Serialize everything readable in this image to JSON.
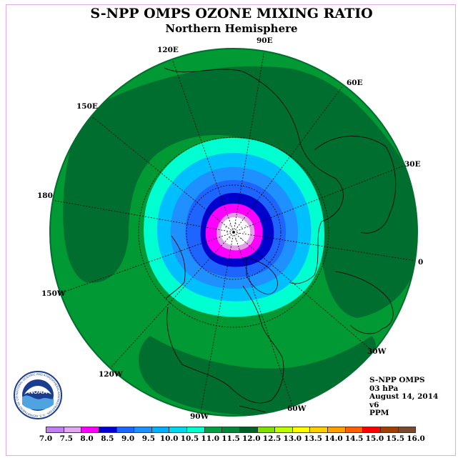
{
  "header": {
    "title": "S-NPP OMPS OZONE MIXING RATIO",
    "subtitle": "Northern Hemisphere"
  },
  "map": {
    "projection": "north-polar-stereographic",
    "longitude_labels": [
      {
        "id": "lon-90e",
        "text": "90E"
      },
      {
        "id": "lon-120e",
        "text": "120E"
      },
      {
        "id": "lon-60e",
        "text": "60E"
      },
      {
        "id": "lon-150e",
        "text": "150E"
      },
      {
        "id": "lon-30e",
        "text": "30E"
      },
      {
        "id": "lon-180",
        "text": "180"
      },
      {
        "id": "lon-0",
        "text": "0"
      },
      {
        "id": "lon-150w",
        "text": "150W"
      },
      {
        "id": "lon-30w",
        "text": "30W"
      },
      {
        "id": "lon-120w",
        "text": "120W"
      },
      {
        "id": "lon-60w",
        "text": "60W"
      },
      {
        "id": "lon-90w",
        "text": "90W"
      }
    ],
    "field_colors": {
      "max_center": "#ffffff",
      "ring_8": "#e0a0e8",
      "ring_8_5": "#ff00ff",
      "ring_9": "#0000cd",
      "ring_9_5": "#1e64ff",
      "ring_10": "#1e90ff",
      "ring_10_5": "#00bfff",
      "ring_11": "#00ffd0",
      "ring_11_5": "#009933",
      "ring_12": "#006e2e"
    }
  },
  "info": {
    "instrument": "S-NPP OMPS",
    "level": "03 hPa",
    "date": "August 14, 2014",
    "version": "v6",
    "units": "PPM"
  },
  "colorbar": {
    "colors": [
      "#c080f0",
      "#e0a8f0",
      "#ff00ff",
      "#0000d0",
      "#1e64ff",
      "#1e90ff",
      "#00b0ff",
      "#00d8f0",
      "#00ffcc",
      "#00a040",
      "#008838",
      "#006028",
      "#80e000",
      "#c0ff00",
      "#ffff00",
      "#ffd000",
      "#ffa000",
      "#ff6000",
      "#ff0000",
      "#a04000",
      "#7a4a30"
    ],
    "ticks": [
      "7.0",
      "7.5",
      "8.0",
      "8.5",
      "9.0",
      "9.5",
      "10.0",
      "10.5",
      "11.0",
      "11.5",
      "12.0",
      "12.5",
      "13.0",
      "13.5",
      "14.0",
      "14.5",
      "15.0",
      "15.5",
      "16.0"
    ]
  },
  "logo": {
    "text": "NOAA",
    "ring_text": "NATIONAL OCEANIC AND ATMOSPHERIC ADMINISTRATION · U.S. DEPARTMENT OF COMMERCE",
    "icon": "noaa-logo"
  }
}
